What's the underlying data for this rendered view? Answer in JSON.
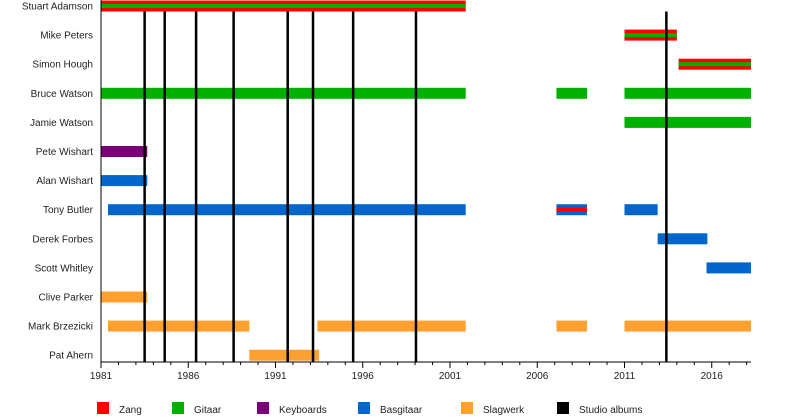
{
  "chart_data": {
    "type": "timeline",
    "title": "",
    "xlim": [
      1981,
      2018.25
    ],
    "x_ticks": [
      1981,
      1986,
      1991,
      1996,
      2001,
      2006,
      2011,
      2016
    ],
    "x_tick_labels": [
      "1981",
      "1986",
      "1991",
      "1996",
      "2001",
      "2006",
      "2011",
      "2016"
    ],
    "roles": {
      "zang": {
        "label": "Zang",
        "color": "#ff0000"
      },
      "gitaar": {
        "label": "Gitaar",
        "color": "#00b000"
      },
      "keyboards": {
        "label": "Keyboards",
        "color": "#7a0078"
      },
      "basgitaar": {
        "label": "Basgitaar",
        "color": "#0066cc"
      },
      "slagwerk": {
        "label": "Slagwerk",
        "color": "#ffa030"
      },
      "albums": {
        "label": "Studio albums",
        "color": "#000000"
      }
    },
    "legend_order": [
      "zang",
      "gitaar",
      "keyboards",
      "basgitaar",
      "slagwerk",
      "albums"
    ],
    "studio_albums": [
      1983.5,
      1984.65,
      1986.45,
      1988.6,
      1991.7,
      1993.15,
      1995.45,
      1999.05,
      2013.4
    ],
    "members": [
      {
        "name": "Stuart Adamson",
        "bars": [
          {
            "start": 1981,
            "end": 2001.9,
            "role": "gitaar",
            "secondary": "zang"
          }
        ]
      },
      {
        "name": "Mike Peters",
        "bars": [
          {
            "start": 2011,
            "end": 2014,
            "role": "gitaar",
            "secondary": "zang"
          }
        ]
      },
      {
        "name": "Simon Hough",
        "bars": [
          {
            "start": 2014.1,
            "end": 2018.25,
            "role": "gitaar",
            "secondary": "zang"
          }
        ]
      },
      {
        "name": "Bruce Watson",
        "bars": [
          {
            "start": 1981,
            "end": 2001.9,
            "role": "gitaar"
          },
          {
            "start": 2007.1,
            "end": 2008.85,
            "role": "gitaar"
          },
          {
            "start": 2011,
            "end": 2018.25,
            "role": "gitaar"
          }
        ]
      },
      {
        "name": "Jamie Watson",
        "bars": [
          {
            "start": 2011,
            "end": 2018.25,
            "role": "gitaar"
          }
        ]
      },
      {
        "name": "Pete Wishart",
        "bars": [
          {
            "start": 1981,
            "end": 1983.65,
            "role": "keyboards"
          }
        ]
      },
      {
        "name": "Alan Wishart",
        "bars": [
          {
            "start": 1981,
            "end": 1983.65,
            "role": "basgitaar"
          }
        ]
      },
      {
        "name": "Tony Butler",
        "bars": [
          {
            "start": 1981.4,
            "end": 2001.9,
            "role": "basgitaar"
          },
          {
            "start": 2007.1,
            "end": 2008.85,
            "role": "basgitaar",
            "inner": "zang"
          },
          {
            "start": 2011,
            "end": 2012.9,
            "role": "basgitaar"
          }
        ]
      },
      {
        "name": "Derek Forbes",
        "bars": [
          {
            "start": 2012.9,
            "end": 2015.75,
            "role": "basgitaar"
          }
        ]
      },
      {
        "name": "Scott Whitley",
        "bars": [
          {
            "start": 2015.7,
            "end": 2018.25,
            "role": "basgitaar"
          }
        ]
      },
      {
        "name": "Clive Parker",
        "bars": [
          {
            "start": 1981,
            "end": 1983.65,
            "role": "slagwerk"
          }
        ]
      },
      {
        "name": "Mark Brzezicki",
        "bars": [
          {
            "start": 1981.4,
            "end": 1989.5,
            "role": "slagwerk"
          },
          {
            "start": 1993.4,
            "end": 2001.9,
            "role": "slagwerk"
          },
          {
            "start": 2007.1,
            "end": 2008.85,
            "role": "slagwerk"
          },
          {
            "start": 2011,
            "end": 2018.25,
            "role": "slagwerk"
          }
        ]
      },
      {
        "name": "Pat Ahern",
        "bars": [
          {
            "start": 1989.5,
            "end": 1993.5,
            "role": "slagwerk"
          }
        ]
      }
    ]
  }
}
